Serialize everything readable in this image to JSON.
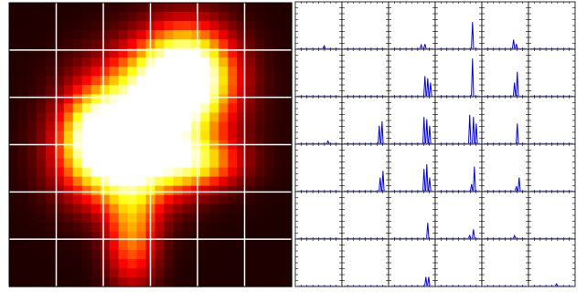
{
  "figure": {
    "colors": {
      "background": "#ffffff",
      "grid_heatmap": "#ffffff",
      "spectra_line": "#0000ff",
      "axis": "#000000"
    },
    "colormap": "hot"
  },
  "chart_data": [
    {
      "type": "heatmap",
      "title": "",
      "xlabel": "",
      "ylabel": "",
      "colormap": "hot",
      "value_range": [
        0,
        1
      ],
      "grid": true,
      "grid_divisions": [
        6,
        6
      ],
      "rows": 31,
      "cols": 31,
      "bright_regions": [
        {
          "center_col": 19,
          "center_row": 7,
          "peak": 1.0,
          "spread_col": 3.5,
          "spread_row": 3.5
        },
        {
          "center_col": 15,
          "center_row": 11,
          "peak": 0.85,
          "spread_col": 5,
          "spread_row": 4
        },
        {
          "center_col": 12,
          "center_row": 17,
          "peak": 0.8,
          "spread_col": 4.5,
          "spread_row": 3.5
        },
        {
          "center_col": 20,
          "center_row": 17,
          "peak": 0.55,
          "spread_col": 3.5,
          "spread_row": 2
        },
        {
          "center_col": 13,
          "center_row": 25,
          "peak": 0.5,
          "spread_col": 2,
          "spread_row": 4
        },
        {
          "center_col": 9,
          "center_row": 14,
          "peak": 0.6,
          "spread_col": 2.5,
          "spread_row": 3
        }
      ]
    },
    {
      "type": "line",
      "title": "",
      "layout": "small-multiples",
      "grid_rows": 6,
      "grid_cols": 6,
      "ylim": [
        0,
        1
      ],
      "xlim": [
        0,
        1
      ],
      "series_color": "#0000ff",
      "cells": [
        [
          [
            {
              "x": 0.62,
              "h": 0.06
            }
          ],
          [],
          [
            {
              "x": 0.7,
              "h": 0.08
            },
            {
              "x": 0.78,
              "h": 0.1
            }
          ],
          [
            {
              "x": 0.8,
              "h": 0.6
            }
          ],
          [
            {
              "x": 0.68,
              "h": 0.2
            },
            {
              "x": 0.74,
              "h": 0.1
            }
          ],
          []
        ],
        [
          [],
          [],
          [
            {
              "x": 0.78,
              "h": 0.45
            },
            {
              "x": 0.84,
              "h": 0.4
            },
            {
              "x": 0.9,
              "h": 0.3
            }
          ],
          [
            {
              "x": 0.8,
              "h": 0.85
            }
          ],
          [
            {
              "x": 0.7,
              "h": 0.3
            },
            {
              "x": 0.76,
              "h": 0.55
            }
          ],
          []
        ],
        [
          [
            {
              "x": 0.7,
              "h": 0.05
            }
          ],
          [
            {
              "x": 0.8,
              "h": 0.4
            },
            {
              "x": 0.86,
              "h": 0.5
            }
          ],
          [
            {
              "x": 0.76,
              "h": 0.6
            },
            {
              "x": 0.82,
              "h": 0.55
            },
            {
              "x": 0.88,
              "h": 0.4
            }
          ],
          [
            {
              "x": 0.74,
              "h": 0.65
            },
            {
              "x": 0.82,
              "h": 0.6
            },
            {
              "x": 0.88,
              "h": 0.45
            }
          ],
          [
            {
              "x": 0.76,
              "h": 0.45
            }
          ],
          []
        ],
        [
          [],
          [
            {
              "x": 0.82,
              "h": 0.3
            },
            {
              "x": 0.88,
              "h": 0.45
            }
          ],
          [
            {
              "x": 0.76,
              "h": 0.5
            },
            {
              "x": 0.82,
              "h": 0.6
            },
            {
              "x": 0.88,
              "h": 0.3
            }
          ],
          [
            {
              "x": 0.78,
              "h": 0.15
            },
            {
              "x": 0.84,
              "h": 0.55
            }
          ],
          [
            {
              "x": 0.74,
              "h": 0.1
            },
            {
              "x": 0.8,
              "h": 0.3
            }
          ],
          []
        ],
        [
          [],
          [],
          [
            {
              "x": 0.84,
              "h": 0.35
            }
          ],
          [
            {
              "x": 0.74,
              "h": 0.06
            },
            {
              "x": 0.82,
              "h": 0.2
            }
          ],
          [
            {
              "x": 0.7,
              "h": 0.06
            }
          ],
          []
        ],
        [
          [],
          [],
          [
            {
              "x": 0.8,
              "h": 0.2
            },
            {
              "x": 0.86,
              "h": 0.2
            }
          ],
          [],
          [],
          [
            {
              "x": 0.6,
              "h": 0.04
            }
          ]
        ]
      ]
    }
  ]
}
